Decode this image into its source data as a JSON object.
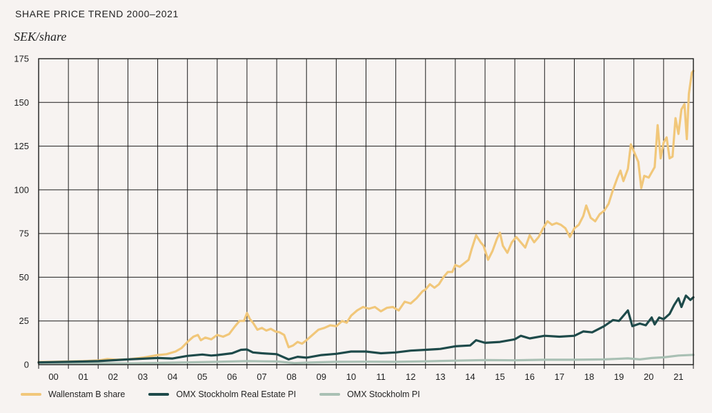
{
  "title": "SHARE PRICE TREND 2000–2021",
  "unit_label": "SEK/share",
  "chart_data": {
    "type": "line",
    "title": "SHARE PRICE TREND 2000–2021",
    "ylabel": "SEK/share",
    "xlabel": "",
    "x_tick_labels": [
      "00",
      "01",
      "02",
      "03",
      "04",
      "05",
      "06",
      "07",
      "08",
      "09",
      "10",
      "11",
      "12",
      "13",
      "14",
      "15",
      "16",
      "17",
      "18",
      "19",
      "20",
      "21"
    ],
    "y_ticks": [
      0,
      25,
      50,
      75,
      100,
      125,
      150,
      175
    ],
    "xlim": [
      2000,
      2021.7
    ],
    "ylim": [
      0,
      175
    ],
    "grid": true,
    "legend_position": "bottom-left",
    "series": [
      {
        "name": "Wallenstam B share",
        "color": "#f1c77a",
        "points": [
          [
            2000.0,
            1.5
          ],
          [
            2000.5,
            1.6
          ],
          [
            2001.0,
            1.8
          ],
          [
            2001.5,
            2.0
          ],
          [
            2002.0,
            2.4
          ],
          [
            2002.3,
            3.2
          ],
          [
            2002.6,
            2.8
          ],
          [
            2003.0,
            3.0
          ],
          [
            2003.5,
            4.0
          ],
          [
            2004.0,
            5.5
          ],
          [
            2004.3,
            6.0
          ],
          [
            2004.6,
            7.5
          ],
          [
            2004.8,
            9.5
          ],
          [
            2005.0,
            13.0
          ],
          [
            2005.2,
            16.0
          ],
          [
            2005.35,
            17.0
          ],
          [
            2005.45,
            14.0
          ],
          [
            2005.6,
            15.5
          ],
          [
            2005.8,
            14.5
          ],
          [
            2006.0,
            17.0
          ],
          [
            2006.2,
            16.0
          ],
          [
            2006.4,
            17.5
          ],
          [
            2006.6,
            22.0
          ],
          [
            2006.75,
            25.0
          ],
          [
            2006.9,
            25.0
          ],
          [
            2007.0,
            29.5
          ],
          [
            2007.1,
            26.0
          ],
          [
            2007.2,
            24.0
          ],
          [
            2007.35,
            20.0
          ],
          [
            2007.5,
            21.0
          ],
          [
            2007.65,
            19.5
          ],
          [
            2007.8,
            20.5
          ],
          [
            2007.95,
            19.0
          ],
          [
            2008.1,
            18.5
          ],
          [
            2008.25,
            17.0
          ],
          [
            2008.4,
            10.0
          ],
          [
            2008.55,
            11.0
          ],
          [
            2008.7,
            13.0
          ],
          [
            2008.85,
            12.0
          ],
          [
            2009.0,
            14.0
          ],
          [
            2009.2,
            17.0
          ],
          [
            2009.4,
            20.0
          ],
          [
            2009.6,
            21.0
          ],
          [
            2009.8,
            22.5
          ],
          [
            2010.0,
            22.0
          ],
          [
            2010.2,
            25.0
          ],
          [
            2010.35,
            24.0
          ],
          [
            2010.5,
            28.0
          ],
          [
            2010.7,
            31.0
          ],
          [
            2010.9,
            33.0
          ],
          [
            2011.1,
            32.0
          ],
          [
            2011.3,
            33.0
          ],
          [
            2011.5,
            30.5
          ],
          [
            2011.7,
            32.5
          ],
          [
            2011.9,
            33.0
          ],
          [
            2012.1,
            31.0
          ],
          [
            2012.3,
            36.0
          ],
          [
            2012.5,
            35.0
          ],
          [
            2012.7,
            38.0
          ],
          [
            2012.9,
            42.0
          ],
          [
            2013.0,
            43.0
          ],
          [
            2013.15,
            46.0
          ],
          [
            2013.3,
            44.0
          ],
          [
            2013.45,
            46.0
          ],
          [
            2013.6,
            50.0
          ],
          [
            2013.75,
            53.0
          ],
          [
            2013.9,
            53.0
          ],
          [
            2014.0,
            57.0
          ],
          [
            2014.15,
            56.0
          ],
          [
            2014.3,
            58.0
          ],
          [
            2014.45,
            60.0
          ],
          [
            2014.55,
            66.0
          ],
          [
            2014.7,
            74.0
          ],
          [
            2014.85,
            70.0
          ],
          [
            2014.95,
            68.0
          ],
          [
            2015.1,
            60.0
          ],
          [
            2015.25,
            65.0
          ],
          [
            2015.4,
            72.0
          ],
          [
            2015.5,
            75.5
          ],
          [
            2015.6,
            68.0
          ],
          [
            2015.75,
            64.0
          ],
          [
            2015.9,
            70.0
          ],
          [
            2016.05,
            73.0
          ],
          [
            2016.2,
            70.0
          ],
          [
            2016.35,
            67.0
          ],
          [
            2016.5,
            74.0
          ],
          [
            2016.65,
            70.0
          ],
          [
            2016.8,
            73.0
          ],
          [
            2016.95,
            78.0
          ],
          [
            2017.1,
            82.0
          ],
          [
            2017.25,
            80.0
          ],
          [
            2017.4,
            81.0
          ],
          [
            2017.55,
            80.0
          ],
          [
            2017.7,
            78.0
          ],
          [
            2017.85,
            73.0
          ],
          [
            2018.0,
            78.0
          ],
          [
            2018.15,
            80.0
          ],
          [
            2018.3,
            85.0
          ],
          [
            2018.4,
            91.0
          ],
          [
            2018.55,
            84.0
          ],
          [
            2018.7,
            82.0
          ],
          [
            2018.85,
            86.0
          ],
          [
            2019.0,
            88.0
          ],
          [
            2019.15,
            92.0
          ],
          [
            2019.3,
            100.0
          ],
          [
            2019.45,
            107.0
          ],
          [
            2019.55,
            111.0
          ],
          [
            2019.65,
            105.0
          ],
          [
            2019.8,
            112.0
          ],
          [
            2019.9,
            126.0
          ],
          [
            2020.05,
            120.0
          ],
          [
            2020.15,
            116.0
          ],
          [
            2020.25,
            101.0
          ],
          [
            2020.35,
            108.0
          ],
          [
            2020.5,
            107.0
          ],
          [
            2020.6,
            110.0
          ],
          [
            2020.7,
            113.0
          ],
          [
            2020.8,
            137.0
          ],
          [
            2020.9,
            118.0
          ],
          [
            2021.0,
            127.0
          ],
          [
            2021.1,
            130.0
          ],
          [
            2021.2,
            118.0
          ],
          [
            2021.3,
            119.0
          ],
          [
            2021.4,
            141.0
          ],
          [
            2021.5,
            132.0
          ],
          [
            2021.6,
            146.0
          ],
          [
            2021.7,
            149.0
          ],
          [
            2021.78,
            129.0
          ],
          [
            2021.85,
            155.0
          ],
          [
            2021.95,
            167.0
          ],
          [
            2022.0,
            168.0
          ]
        ]
      },
      {
        "name": "OMX Stockholm Real Estate PI",
        "color": "#1e4a4a",
        "points": [
          [
            2000.0,
            1.3
          ],
          [
            2001.0,
            1.6
          ],
          [
            2002.0,
            2.0
          ],
          [
            2003.0,
            3.0
          ],
          [
            2004.0,
            3.8
          ],
          [
            2004.5,
            3.5
          ],
          [
            2005.0,
            5.0
          ],
          [
            2005.5,
            5.8
          ],
          [
            2005.8,
            5.2
          ],
          [
            2006.0,
            5.5
          ],
          [
            2006.5,
            6.5
          ],
          [
            2006.8,
            8.5
          ],
          [
            2007.0,
            8.7
          ],
          [
            2007.2,
            7.0
          ],
          [
            2007.5,
            6.5
          ],
          [
            2008.0,
            6.0
          ],
          [
            2008.4,
            3.0
          ],
          [
            2008.7,
            4.5
          ],
          [
            2009.0,
            4.0
          ],
          [
            2009.5,
            5.5
          ],
          [
            2010.0,
            6.2
          ],
          [
            2010.5,
            7.5
          ],
          [
            2011.0,
            7.5
          ],
          [
            2011.5,
            6.5
          ],
          [
            2012.0,
            7.0
          ],
          [
            2012.5,
            8.0
          ],
          [
            2013.0,
            8.5
          ],
          [
            2013.5,
            9.0
          ],
          [
            2014.0,
            10.5
          ],
          [
            2014.5,
            11.0
          ],
          [
            2014.7,
            14.0
          ],
          [
            2015.0,
            12.5
          ],
          [
            2015.5,
            13.0
          ],
          [
            2016.0,
            14.5
          ],
          [
            2016.2,
            16.5
          ],
          [
            2016.5,
            15.0
          ],
          [
            2017.0,
            16.5
          ],
          [
            2017.5,
            16.0
          ],
          [
            2018.0,
            16.5
          ],
          [
            2018.3,
            19.0
          ],
          [
            2018.6,
            18.5
          ],
          [
            2019.0,
            22.0
          ],
          [
            2019.3,
            25.5
          ],
          [
            2019.5,
            25.0
          ],
          [
            2019.8,
            31.0
          ],
          [
            2019.95,
            22.0
          ],
          [
            2020.2,
            23.5
          ],
          [
            2020.4,
            22.5
          ],
          [
            2020.6,
            27.0
          ],
          [
            2020.7,
            23.0
          ],
          [
            2020.85,
            27.0
          ],
          [
            2021.0,
            26.0
          ],
          [
            2021.2,
            29.0
          ],
          [
            2021.35,
            34.0
          ],
          [
            2021.5,
            38.0
          ],
          [
            2021.6,
            33.0
          ],
          [
            2021.75,
            39.5
          ],
          [
            2021.9,
            37.0
          ],
          [
            2022.0,
            38.5
          ]
        ]
      },
      {
        "name": "OMX Stockholm PI",
        "color": "#a9c0b4",
        "points": [
          [
            2000.0,
            1.0
          ],
          [
            2001.0,
            1.0
          ],
          [
            2002.0,
            0.8
          ],
          [
            2003.0,
            0.7
          ],
          [
            2004.0,
            1.0
          ],
          [
            2005.0,
            1.3
          ],
          [
            2006.0,
            1.6
          ],
          [
            2007.0,
            2.0
          ],
          [
            2008.0,
            1.8
          ],
          [
            2008.6,
            0.9
          ],
          [
            2009.0,
            1.2
          ],
          [
            2010.0,
            1.6
          ],
          [
            2011.0,
            1.7
          ],
          [
            2012.0,
            1.6
          ],
          [
            2013.0,
            1.9
          ],
          [
            2014.0,
            2.3
          ],
          [
            2015.0,
            2.6
          ],
          [
            2016.0,
            2.5
          ],
          [
            2017.0,
            2.8
          ],
          [
            2018.0,
            2.8
          ],
          [
            2019.0,
            3.0
          ],
          [
            2019.8,
            3.6
          ],
          [
            2020.2,
            3.0
          ],
          [
            2020.6,
            3.8
          ],
          [
            2021.0,
            4.2
          ],
          [
            2021.5,
            5.2
          ],
          [
            2022.0,
            5.6
          ]
        ]
      }
    ]
  }
}
